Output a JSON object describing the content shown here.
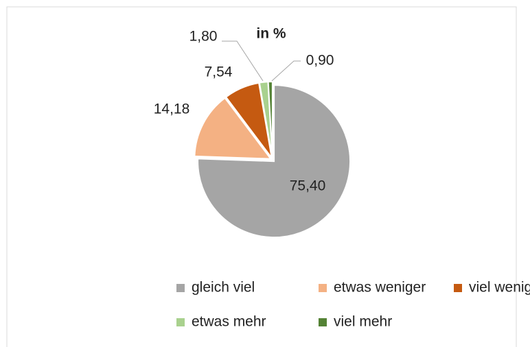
{
  "chart_data": {
    "type": "pie",
    "title": "in %",
    "categories": [
      "gleich viel",
      "etwas weniger",
      "viel weniger",
      "etwas mehr",
      "viel mehr"
    ],
    "values": [
      75.4,
      14.18,
      7.54,
      1.8,
      0.9
    ],
    "value_labels": [
      "75,40",
      "14,18",
      "7,54",
      "1,80",
      "0,90"
    ],
    "colors": [
      "#a5a5a5",
      "#f4b183",
      "#c55a11",
      "#a9d18e",
      "#548235"
    ],
    "legend": "bottom"
  }
}
